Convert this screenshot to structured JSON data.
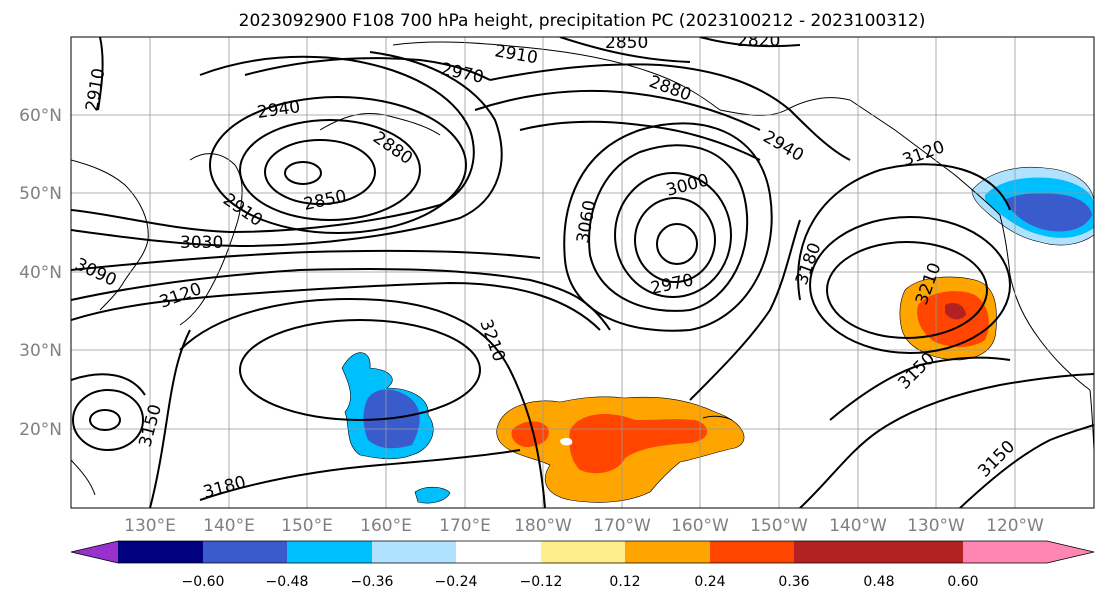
{
  "title": "2023092900 F108 700 hPa height, precipitation PC (2023100212 - 2023100312)",
  "lat_labels": [
    "60°N",
    "50°N",
    "40°N",
    "30°N",
    "20°N"
  ],
  "lon_labels": [
    "130°E",
    "140°E",
    "150°E",
    "160°E",
    "170°E",
    "180°W",
    "170°W",
    "160°W",
    "150°W",
    "140°W",
    "130°W",
    "120°W"
  ],
  "colorbar": {
    "ticks": [
      "−0.60",
      "−0.48",
      "−0.36",
      "−0.24",
      "−0.12",
      "0.12",
      "0.24",
      "0.36",
      "0.48",
      "0.60"
    ],
    "colors": [
      "#9932CC",
      "#000080",
      "#3A5BCC",
      "#00BFFF",
      "#B0E2FF",
      "#FFFFFF",
      "#FFEC8B",
      "#FFA500",
      "#FF4500",
      "#B22222",
      "#FF85B2"
    ]
  },
  "contour_labels": [
    {
      "text": "2910"
    },
    {
      "text": "2850"
    },
    {
      "text": "2820"
    },
    {
      "text": "2910"
    },
    {
      "text": "2970"
    },
    {
      "text": "2880"
    },
    {
      "text": "2940"
    },
    {
      "text": "2880"
    },
    {
      "text": "2940"
    },
    {
      "text": "3120"
    },
    {
      "text": "2910"
    },
    {
      "text": "2850"
    },
    {
      "text": "3030"
    },
    {
      "text": "3090"
    },
    {
      "text": "3120"
    },
    {
      "text": "3060"
    },
    {
      "text": "3000"
    },
    {
      "text": "2970"
    },
    {
      "text": "3180"
    },
    {
      "text": "3210"
    },
    {
      "text": "3210"
    },
    {
      "text": "3150"
    },
    {
      "text": "3150"
    },
    {
      "text": "3180"
    },
    {
      "text": "3150"
    }
  ]
}
